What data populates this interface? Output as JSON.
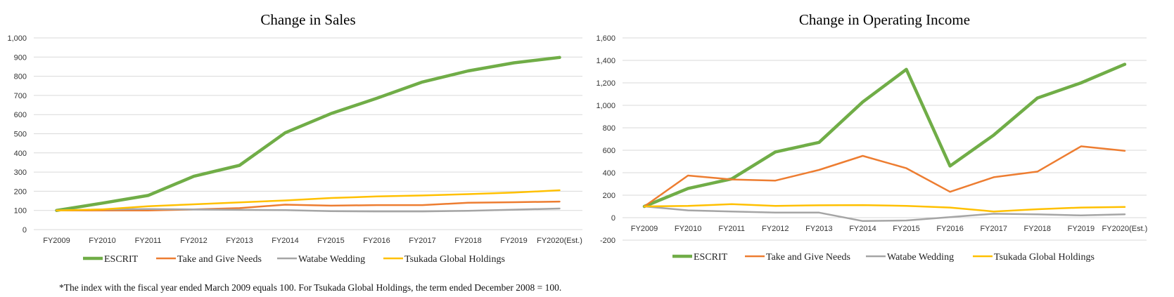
{
  "footnote": "*The index with the fiscal year ended March 2009 equals 100. For Tsukada Global Holdings, the term ended December 2008 = 100.",
  "colors": {
    "ESCRIT": "#70ad47",
    "Take and Give Needs": "#ed7d31",
    "Watabe Wedding": "#a5a5a5",
    "Tsukada Global Holdings": "#ffc000",
    "negative_tick": "#ff0000"
  },
  "chart_data": [
    {
      "type": "line",
      "title": "Change in Sales",
      "xlabel": "",
      "ylabel": "",
      "categories": [
        "FY2009",
        "FY2010",
        "FY2011",
        "FY2012",
        "FY2013",
        "FY2014",
        "FY2015",
        "FY2016",
        "FY2017",
        "FY2018",
        "FY2019",
        "FY2020(Est.)"
      ],
      "ylim": [
        0,
        1000
      ],
      "yticks": [
        0,
        100,
        200,
        300,
        400,
        500,
        600,
        700,
        800,
        900,
        1000
      ],
      "ytick_labels": [
        "0",
        "100",
        "200",
        "300",
        "400",
        "500",
        "600",
        "700",
        "800",
        "900",
        "1,000"
      ],
      "grid": true,
      "legend_position": "bottom",
      "series": [
        {
          "name": "ESCRIT",
          "values": [
            100,
            138,
            178,
            278,
            335,
            505,
            605,
            685,
            770,
            828,
            870,
            898
          ]
        },
        {
          "name": "Take and Give Needs",
          "values": [
            100,
            100,
            100,
            105,
            112,
            130,
            125,
            128,
            128,
            140,
            143,
            146
          ]
        },
        {
          "name": "Watabe Wedding",
          "values": [
            100,
            105,
            107,
            105,
            103,
            102,
            96,
            95,
            95,
            98,
            104,
            110
          ]
        },
        {
          "name": "Tsukada Global Holdings",
          "values": [
            100,
            105,
            122,
            132,
            142,
            152,
            165,
            173,
            178,
            185,
            193,
            205
          ]
        }
      ]
    },
    {
      "type": "line",
      "title": "Change in Operating Income",
      "xlabel": "",
      "ylabel": "",
      "categories": [
        "FY2009",
        "FY2010",
        "FY2011",
        "FY2012",
        "FY2013",
        "FY2014",
        "FY2015",
        "FY2016",
        "FY2017",
        "FY2018",
        "FY2019",
        "FY2020(Est.)"
      ],
      "ylim": [
        -200,
        1600
      ],
      "yticks": [
        -200,
        0,
        200,
        400,
        600,
        800,
        1000,
        1200,
        1400,
        1600
      ],
      "ytick_labels": [
        "-200",
        "0",
        "200",
        "400",
        "600",
        "800",
        "1,000",
        "1,200",
        "1,400",
        "1,600"
      ],
      "grid": true,
      "legend_position": "bottom",
      "series": [
        {
          "name": "ESCRIT",
          "values": [
            100,
            260,
            345,
            585,
            670,
            1030,
            1320,
            460,
            735,
            1065,
            1200,
            1365
          ]
        },
        {
          "name": "Take and Give Needs",
          "values": [
            100,
            375,
            340,
            330,
            425,
            550,
            440,
            230,
            360,
            410,
            635,
            595
          ]
        },
        {
          "name": "Watabe Wedding",
          "values": [
            100,
            65,
            55,
            45,
            45,
            -30,
            -25,
            5,
            35,
            30,
            20,
            30
          ]
        },
        {
          "name": "Tsukada Global Holdings",
          "values": [
            100,
            105,
            120,
            105,
            110,
            112,
            105,
            90,
            55,
            75,
            90,
            95
          ]
        }
      ]
    }
  ]
}
